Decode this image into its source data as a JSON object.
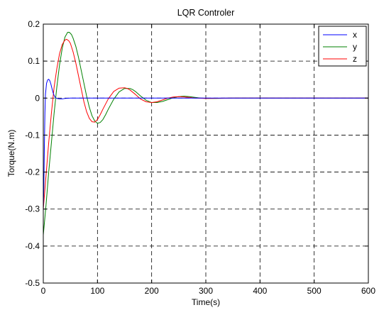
{
  "chart_data": {
    "type": "line",
    "title": "LQR Controler",
    "xlabel": "Time(s)",
    "ylabel": "Torque(N.m)",
    "xlim": [
      0,
      600
    ],
    "ylim": [
      -0.5,
      0.2
    ],
    "xticks": [
      0,
      100,
      200,
      300,
      400,
      500,
      600
    ],
    "yticks": [
      0.2,
      0.1,
      0,
      -0.1,
      -0.2,
      -0.3,
      -0.4,
      -0.5
    ],
    "xtick_labels": [
      "0",
      "100",
      "200",
      "300",
      "400",
      "500",
      "600"
    ],
    "ytick_labels": [
      "0.2",
      "0.1",
      "0",
      "-0.1",
      "-0.2",
      "-0.3",
      "-0.4",
      "-0.5"
    ],
    "grid": true,
    "legend_position": "top-right",
    "series": [
      {
        "name": "x",
        "color": "#0000ff",
        "x": [
          0,
          1,
          2,
          3,
          4,
          6,
          8,
          10,
          12,
          14,
          16,
          18,
          20,
          22,
          25,
          30,
          35,
          40,
          50,
          60,
          80,
          100,
          150,
          200,
          300,
          400,
          500,
          600
        ],
        "y": [
          -0.3,
          -0.24,
          -0.13,
          -0.04,
          0.01,
          0.04,
          0.049,
          0.051,
          0.047,
          0.038,
          0.026,
          0.015,
          0.007,
          0.002,
          -0.001,
          -0.002,
          -0.002,
          -0.001,
          0,
          0,
          0,
          0,
          0,
          0,
          0,
          0,
          0,
          0
        ]
      },
      {
        "name": "y",
        "color": "#008000",
        "x": [
          0,
          5,
          10,
          15,
          20,
          25,
          30,
          35,
          40,
          45,
          48,
          52,
          55,
          60,
          65,
          70,
          75,
          80,
          85,
          90,
          95,
          100,
          105,
          110,
          115,
          120,
          130,
          140,
          150,
          160,
          165,
          170,
          180,
          190,
          200,
          210,
          220,
          230,
          240,
          250,
          260,
          270,
          280,
          290,
          300,
          320,
          350,
          400,
          500,
          600
        ],
        "y": [
          -0.37,
          -0.29,
          -0.2,
          -0.12,
          -0.04,
          0.03,
          0.09,
          0.135,
          0.165,
          0.178,
          0.178,
          0.172,
          0.162,
          0.14,
          0.11,
          0.075,
          0.04,
          0.005,
          -0.025,
          -0.048,
          -0.062,
          -0.068,
          -0.066,
          -0.058,
          -0.045,
          -0.03,
          -0.003,
          0.017,
          0.026,
          0.026,
          0.023,
          0.018,
          0.005,
          -0.006,
          -0.012,
          -0.012,
          -0.009,
          -0.004,
          0.001,
          0.004,
          0.005,
          0.004,
          0.002,
          0,
          -0.001,
          -0.001,
          0,
          0,
          0,
          0
        ]
      },
      {
        "name": "z",
        "color": "#ff0000",
        "x": [
          0,
          5,
          10,
          15,
          20,
          25,
          30,
          35,
          40,
          43,
          47,
          50,
          55,
          60,
          65,
          70,
          75,
          80,
          85,
          90,
          95,
          100,
          105,
          110,
          120,
          130,
          140,
          150,
          155,
          160,
          170,
          180,
          190,
          200,
          210,
          220,
          230,
          240,
          250,
          260,
          270,
          280,
          300,
          350,
          400,
          500,
          600
        ],
        "y": [
          -0.3,
          -0.21,
          -0.12,
          -0.04,
          0.03,
          0.08,
          0.12,
          0.145,
          0.157,
          0.159,
          0.155,
          0.148,
          0.125,
          0.095,
          0.06,
          0.025,
          -0.01,
          -0.037,
          -0.055,
          -0.064,
          -0.065,
          -0.058,
          -0.045,
          -0.03,
          -0.002,
          0.018,
          0.027,
          0.028,
          0.026,
          0.022,
          0.01,
          -0.003,
          -0.01,
          -0.012,
          -0.01,
          -0.005,
          0,
          0.003,
          0.004,
          0.003,
          0.002,
          0,
          -0.001,
          0,
          0,
          0,
          0
        ]
      }
    ]
  }
}
